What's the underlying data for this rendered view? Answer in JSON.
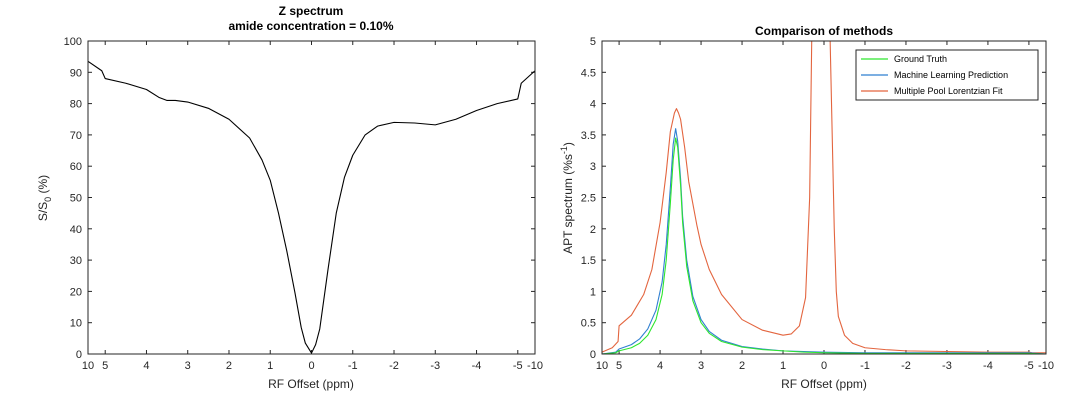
{
  "colors": {
    "ground_truth": "#2ee62e",
    "ml_prediction": "#2f7fd1",
    "mplf": "#e3653f",
    "z_line": "#000000"
  },
  "chart_data": [
    {
      "type": "line",
      "title": "Z spectrum",
      "subtitle": "amide concentration = 0.10%",
      "xlabel": "RF Offset (ppm)",
      "ylabel_main": "S/S",
      "ylabel_sub": "0",
      "ylabel_tail": " (%)",
      "x_axis": "reversed, non-uniform (-5..5 linear in center, outer span compressed to 10 / -10)",
      "x_ticks": [
        "10",
        "5",
        "4",
        "3",
        "2",
        "1",
        "0",
        "-1",
        "-2",
        "-3",
        "-4",
        "-5",
        "-10"
      ],
      "y_ticks": [
        "0",
        "10",
        "20",
        "30",
        "40",
        "50",
        "60",
        "70",
        "80",
        "90",
        "100"
      ],
      "ylim": [
        0,
        100
      ],
      "grid": false,
      "series": [
        {
          "color_key": "z_line",
          "x": [
            10,
            6,
            5,
            4.5,
            4,
            3.7,
            3.5,
            3.3,
            3,
            2.5,
            2,
            1.5,
            1.2,
            1,
            0.8,
            0.6,
            0.4,
            0.25,
            0.15,
            0,
            -0.1,
            -0.2,
            -0.4,
            -0.6,
            -0.8,
            -1,
            -1.3,
            -1.6,
            -2,
            -2.5,
            -3,
            -3.5,
            -4,
            -4.5,
            -5,
            -6,
            -10
          ],
          "y": [
            93.5,
            90.5,
            88,
            86.5,
            84.5,
            82,
            81,
            81,
            80.5,
            78.5,
            75,
            69,
            62,
            55.5,
            45,
            33,
            19.5,
            8.5,
            3.5,
            0.3,
            3,
            8,
            27,
            45,
            56.5,
            63.5,
            70,
            72.8,
            74,
            73.8,
            73.2,
            75,
            77.8,
            80,
            81.5,
            86.5,
            90.5
          ]
        }
      ]
    },
    {
      "type": "line",
      "title": "Comparison of methods",
      "xlabel": "RF Offset (ppm)",
      "ylabel_main": "APT spectrum (%s",
      "ylabel_sup": "-1",
      "ylabel_tail": ")",
      "x_axis": "reversed, non-uniform (-5..5 linear in center, outer span compressed to 10 / -10)",
      "x_ticks": [
        "10",
        "5",
        "4",
        "3",
        "2",
        "1",
        "0",
        "-1",
        "-2",
        "-3",
        "-4",
        "-5",
        "-10"
      ],
      "y_ticks": [
        "0",
        "0.5",
        "1",
        "1.5",
        "2",
        "2.5",
        "3",
        "3.5",
        "4",
        "4.5",
        "5"
      ],
      "ylim": [
        0,
        5
      ],
      "grid": false,
      "legend": "top-right",
      "series": [
        {
          "name": "Ground Truth",
          "color_key": "ground_truth",
          "x": [
            10,
            6,
            5,
            4.7,
            4.5,
            4.3,
            4.1,
            3.95,
            3.85,
            3.75,
            3.68,
            3.62,
            3.57,
            3.5,
            3.45,
            3.35,
            3.2,
            3,
            2.8,
            2.5,
            2,
            1.5,
            1,
            0.5,
            0,
            -1,
            -2,
            -3,
            -4,
            -5,
            -10
          ],
          "y": [
            0,
            0.02,
            0.05,
            0.1,
            0.17,
            0.3,
            0.55,
            0.95,
            1.5,
            2.4,
            3.1,
            3.45,
            3.3,
            2.7,
            2.1,
            1.4,
            0.85,
            0.5,
            0.33,
            0.2,
            0.11,
            0.07,
            0.05,
            0.03,
            0.02,
            0.01,
            0.01,
            0.01,
            0.01,
            0.01,
            0
          ]
        },
        {
          "name": "Machine Learning Prediction",
          "color_key": "ml_prediction",
          "x": [
            10,
            6,
            5,
            4.7,
            4.5,
            4.3,
            4.1,
            3.95,
            3.85,
            3.75,
            3.68,
            3.62,
            3.57,
            3.5,
            3.45,
            3.35,
            3.2,
            3,
            2.8,
            2.5,
            2,
            1.5,
            1,
            0.5,
            0,
            -1,
            -2,
            -3,
            -4,
            -5,
            -10
          ],
          "y": [
            0,
            0.03,
            0.08,
            0.15,
            0.24,
            0.4,
            0.7,
            1.15,
            1.75,
            2.65,
            3.35,
            3.6,
            3.4,
            2.8,
            2.2,
            1.5,
            0.92,
            0.55,
            0.36,
            0.22,
            0.12,
            0.08,
            0.05,
            0.04,
            0.03,
            0.02,
            0.02,
            0.02,
            0.02,
            0.02,
            0
          ]
        },
        {
          "name": "Multiple Pool Lorentzian Fit",
          "color_key": "mplf",
          "x": [
            10,
            7,
            5.3,
            5,
            4.7,
            4.4,
            4.2,
            4,
            3.85,
            3.75,
            3.65,
            3.6,
            3.55,
            3.5,
            3.4,
            3.3,
            3.1,
            3,
            2.8,
            2.5,
            2,
            1.5,
            1,
            0.8,
            0.6,
            0.45,
            0.35,
            0.3,
            -0.15,
            -0.2,
            -0.25,
            -0.3,
            -0.35,
            -0.5,
            -0.7,
            -1,
            -1.5,
            -2,
            -3,
            -4,
            -5,
            -6,
            -10
          ],
          "y": [
            0.03,
            0.1,
            0.2,
            0.45,
            0.62,
            0.95,
            1.35,
            2.1,
            2.9,
            3.55,
            3.85,
            3.92,
            3.85,
            3.75,
            3.3,
            2.75,
            2.05,
            1.75,
            1.35,
            0.95,
            0.55,
            0.38,
            0.3,
            0.32,
            0.45,
            0.9,
            2.5,
            5,
            5,
            3.5,
            2.0,
            1.0,
            0.6,
            0.3,
            0.17,
            0.1,
            0.07,
            0.05,
            0.04,
            0.03,
            0.03,
            0.02,
            0.02
          ]
        }
      ]
    }
  ]
}
